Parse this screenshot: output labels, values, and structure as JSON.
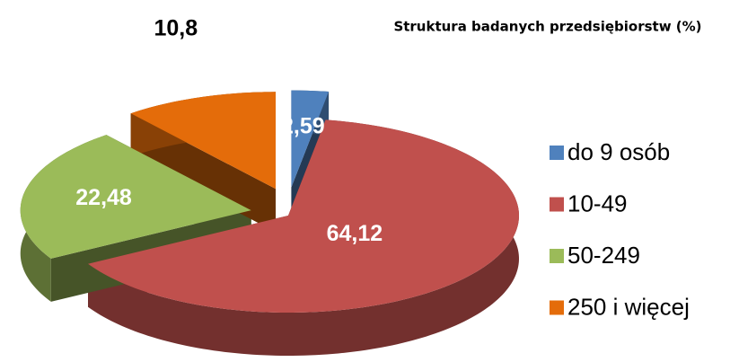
{
  "chart_data": {
    "type": "pie",
    "title": "Struktura badanych przedsiębiorstw (%)",
    "categories": [
      "do 9 osób",
      "10-49",
      "50-249",
      "250 i więcej"
    ],
    "values": [
      2.59,
      64.12,
      22.48,
      10.8
    ],
    "value_labels": [
      "2,59",
      "64,12",
      "22,48",
      "10,8"
    ],
    "colors": [
      "#4f81bd",
      "#c0504d",
      "#9bbb59",
      "#e46c0a"
    ],
    "legend": "right"
  }
}
